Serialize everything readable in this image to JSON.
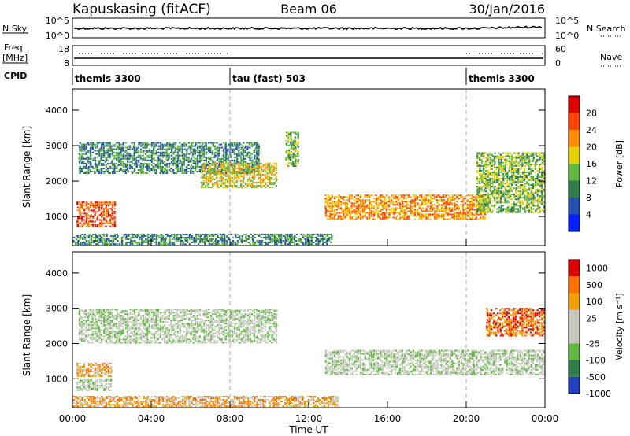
{
  "header": {
    "radar": "Kapuskasing (fitACF)",
    "beam": "Beam 06",
    "date": "30/Jan/2016"
  },
  "summary_panels": {
    "nsky": {
      "label": "N.Sky",
      "tick_top": "10^5",
      "tick_bottom": "10^0",
      "right_label": "N.Search",
      "right_tick_top": "10^5",
      "right_tick_bottom": "10^0"
    },
    "freq": {
      "label_line1": "Freq.",
      "label_line2": "[MHz]",
      "tick_top": "18",
      "tick_bottom": "8",
      "right_label": "Nave",
      "right_tick_top": "60",
      "right_tick_bottom": "0"
    },
    "cpid": {
      "label": "CPID",
      "segments": [
        {
          "name": "themis 3300",
          "start_hour": 0,
          "end_hour": 8
        },
        {
          "name": "tau (fast) 503",
          "start_hour": 8,
          "end_hour": 20
        },
        {
          "name": "themis 3300",
          "start_hour": 20,
          "end_hour": 24
        }
      ]
    }
  },
  "chart_data": [
    {
      "type": "heatmap",
      "panel": "power",
      "ylabel": "Slant Range [km]",
      "xlim": [
        0,
        24
      ],
      "ylim": [
        180,
        4600
      ],
      "yticks": [
        1000,
        2000,
        3000,
        4000
      ],
      "colorbar": {
        "label": "Power [dB]",
        "ticks": [
          "4",
          "8",
          "12",
          "16",
          "20",
          "24",
          "28"
        ],
        "colors": [
          "#0020ff",
          "#2450b0",
          "#2e7d4a",
          "#60b840",
          "#e6d000",
          "#ff8c00",
          "#ff4500",
          "#e00000"
        ]
      },
      "regions": [
        {
          "t0": 0.2,
          "t1": 2.2,
          "r0": 700,
          "r1": 1400,
          "level": 6
        },
        {
          "t0": 0.3,
          "t1": 9.5,
          "r0": 2200,
          "r1": 3100,
          "level": 2
        },
        {
          "t0": 6.5,
          "t1": 10.4,
          "r0": 1800,
          "r1": 2500,
          "level": 4
        },
        {
          "t0": 10.8,
          "t1": 11.5,
          "r0": 2400,
          "r1": 3400,
          "level": 3
        },
        {
          "t0": 12.8,
          "t1": 21.0,
          "r0": 900,
          "r1": 1600,
          "level": 5
        },
        {
          "t0": 20.5,
          "t1": 24.0,
          "r0": 1100,
          "r1": 2800,
          "level": 3
        },
        {
          "t0": 0.0,
          "t1": 13.2,
          "r0": 200,
          "r1": 500,
          "level": 2
        }
      ]
    },
    {
      "type": "heatmap",
      "panel": "velocity",
      "ylabel": "Slant Range [km]",
      "xlabel": "Time UT",
      "xlim": [
        0,
        24
      ],
      "ylim": [
        180,
        4600
      ],
      "yticks": [
        1000,
        2000,
        3000,
        4000
      ],
      "xticks": [
        "00:00",
        "04:00",
        "08:00",
        "12:00",
        "16:00",
        "20:00",
        "00:00"
      ],
      "colorbar": {
        "label": "Velocity [m s^-1]",
        "ticks": [
          "1000",
          "500",
          "100",
          "25",
          "-25",
          "-100",
          "-500",
          "-1000"
        ],
        "colors": [
          "#2040c0",
          "#2e7d4a",
          "#60b840",
          "#c8c8c0",
          "#c8c8c0",
          "#f0a000",
          "#ff7000",
          "#e00000"
        ]
      },
      "regions": [
        {
          "t0": 0.2,
          "t1": 2.0,
          "r0": 1050,
          "r1": 1450,
          "level": 5
        },
        {
          "t0": 0.2,
          "t1": 2.0,
          "r0": 650,
          "r1": 1000,
          "level": 3
        },
        {
          "t0": 0.3,
          "t1": 10.4,
          "r0": 2000,
          "r1": 3000,
          "level": 3
        },
        {
          "t0": 12.8,
          "t1": 24.0,
          "r0": 1100,
          "r1": 1800,
          "level": 3
        },
        {
          "t0": 21.0,
          "t1": 24.0,
          "r0": 2200,
          "r1": 3000,
          "level": 6
        },
        {
          "t0": 0.0,
          "t1": 13.5,
          "r0": 200,
          "r1": 500,
          "level": 5
        }
      ]
    }
  ]
}
